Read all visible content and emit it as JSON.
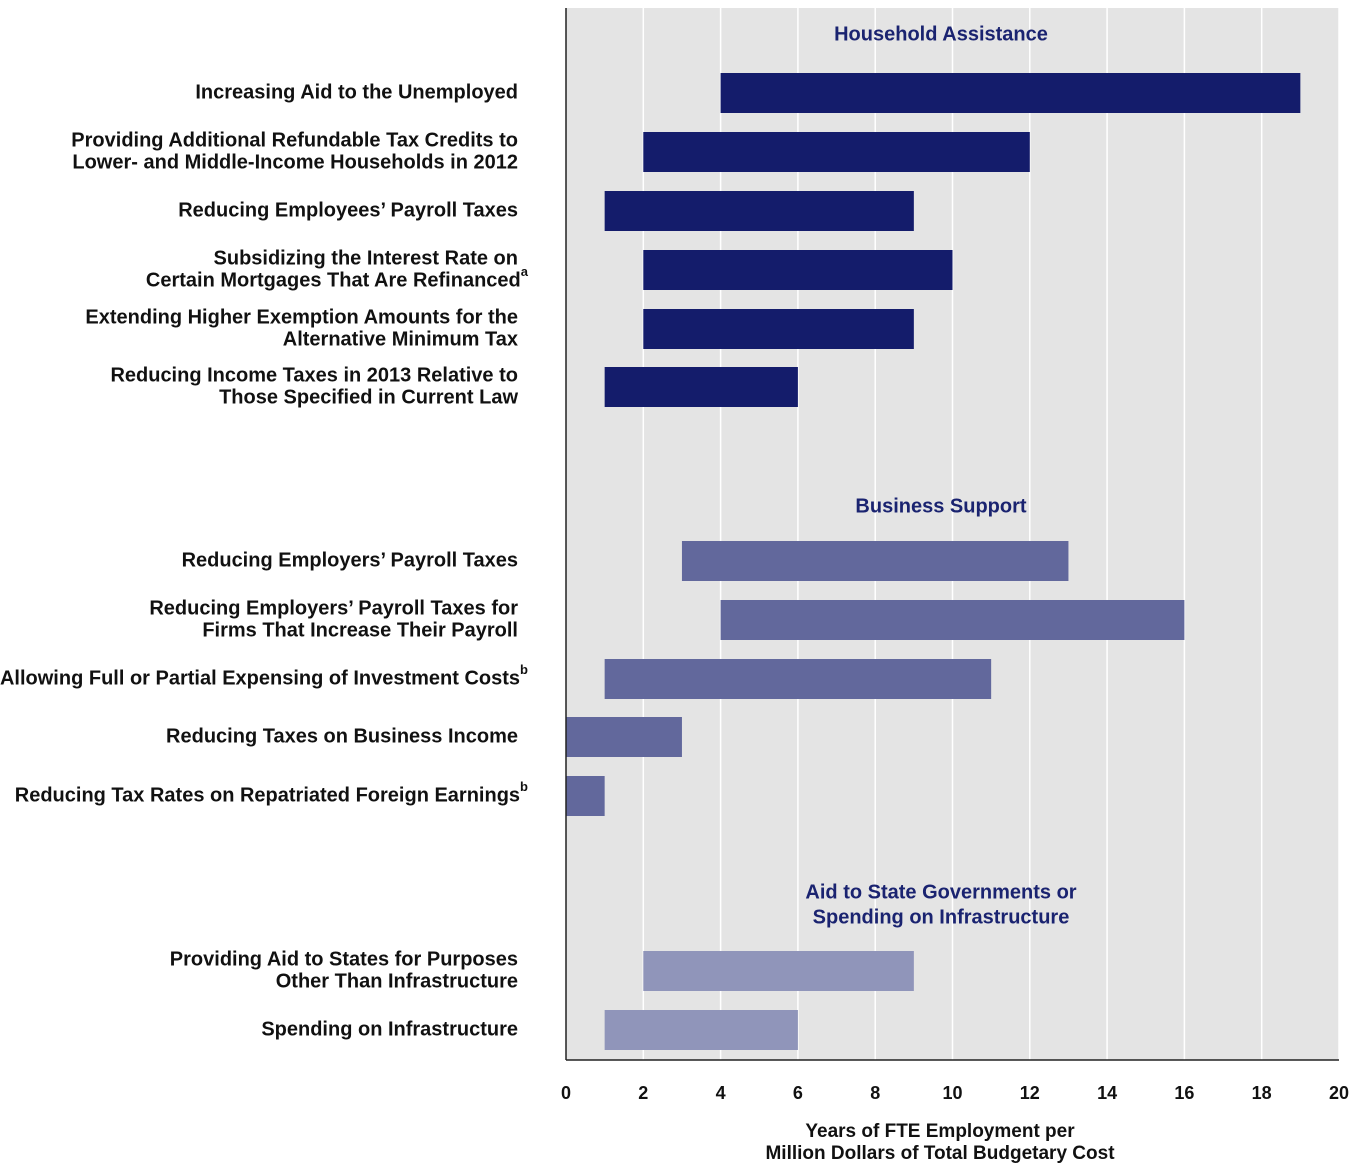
{
  "chart_data": {
    "type": "bar",
    "orientation": "horizontal",
    "subtype": "range",
    "xlim": [
      0,
      20
    ],
    "x_ticks": [
      "0",
      "2",
      "4",
      "6",
      "8",
      "10",
      "12",
      "14",
      "16",
      "18",
      "20"
    ],
    "xlabel": [
      "Years of FTE Employment per",
      "Million Dollars of Total Budgetary Cost"
    ],
    "grid": true,
    "groups": [
      {
        "title": [
          "Household Assistance"
        ],
        "color": "#141c6b",
        "items": [
          {
            "label": [
              "Increasing Aid to the Unemployed"
            ],
            "sup": "",
            "low": 4,
            "high": 19
          },
          {
            "label": [
              "Providing Additional Refundable Tax Credits to",
              "Lower- and Middle-Income Households in 2012"
            ],
            "sup": "",
            "low": 2,
            "high": 12
          },
          {
            "label": [
              "Reducing Employees’ Payroll Taxes"
            ],
            "sup": "",
            "low": 1,
            "high": 9
          },
          {
            "label": [
              "Subsidizing the Interest Rate on",
              "Certain Mortgages That Are Refinanced"
            ],
            "sup": "a",
            "low": 2,
            "high": 10
          },
          {
            "label": [
              "Extending Higher Exemption Amounts for the",
              "Alternative Minimum Tax"
            ],
            "sup": "",
            "low": 2,
            "high": 9
          },
          {
            "label": [
              "Reducing Income Taxes in 2013 Relative to",
              "Those Specified in Current Law"
            ],
            "sup": "",
            "low": 1,
            "high": 6
          }
        ]
      },
      {
        "title": [
          "Business Support"
        ],
        "color": "#62689c",
        "items": [
          {
            "label": [
              "Reducing Employers’ Payroll Taxes"
            ],
            "sup": "",
            "low": 3,
            "high": 13
          },
          {
            "label": [
              "Reducing Employers’ Payroll Taxes for",
              "Firms That Increase Their Payroll"
            ],
            "sup": "",
            "low": 4,
            "high": 16
          },
          {
            "label": [
              "Allowing Full or Partial Expensing of Investment Costs"
            ],
            "sup": "b",
            "low": 1,
            "high": 11
          },
          {
            "label": [
              "Reducing Taxes on Business Income"
            ],
            "sup": "",
            "low": 0,
            "high": 3
          },
          {
            "label": [
              "Reducing Tax Rates on Repatriated Foreign Earnings"
            ],
            "sup": "b",
            "low": 0,
            "high": 1
          }
        ]
      },
      {
        "title": [
          "Aid to State Governments or",
          "Spending on Infrastructure"
        ],
        "color": "#9095ba",
        "items": [
          {
            "label": [
              "Providing Aid to States for Purposes",
              "Other Than Infrastructure"
            ],
            "sup": "",
            "low": 2,
            "high": 9
          },
          {
            "label": [
              "Spending on Infrastructure"
            ],
            "sup": "",
            "low": 1,
            "high": 6
          }
        ]
      }
    ]
  }
}
